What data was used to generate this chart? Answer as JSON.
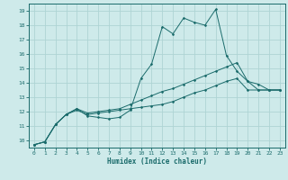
{
  "xlabel": "Humidex (Indice chaleur)",
  "xlim": [
    -0.5,
    23.5
  ],
  "ylim": [
    9.5,
    19.5
  ],
  "xticks": [
    0,
    1,
    2,
    3,
    4,
    5,
    6,
    7,
    8,
    9,
    10,
    11,
    12,
    13,
    14,
    15,
    16,
    17,
    18,
    19,
    20,
    21,
    22,
    23
  ],
  "yticks": [
    10,
    11,
    12,
    13,
    14,
    15,
    16,
    17,
    18,
    19
  ],
  "bg_color": "#ceeaea",
  "grid_color": "#aed4d4",
  "line_color": "#1a6b6b",
  "lines": [
    [
      9.7,
      9.9,
      11.1,
      11.8,
      12.2,
      11.7,
      11.6,
      11.5,
      11.6,
      12.1,
      14.3,
      15.3,
      17.9,
      17.4,
      18.5,
      18.2,
      18.0,
      19.1,
      15.9,
      14.8,
      14.1,
      13.5,
      13.5,
      13.5
    ],
    [
      9.7,
      9.9,
      11.1,
      11.8,
      12.1,
      11.8,
      11.9,
      12.0,
      12.1,
      12.2,
      12.3,
      12.4,
      12.5,
      12.7,
      13.0,
      13.3,
      13.5,
      13.8,
      14.1,
      14.3,
      13.5,
      13.5,
      13.5,
      13.5
    ],
    [
      9.7,
      9.9,
      11.1,
      11.8,
      12.2,
      11.9,
      12.0,
      12.1,
      12.2,
      12.5,
      12.8,
      13.1,
      13.4,
      13.6,
      13.9,
      14.2,
      14.5,
      14.8,
      15.1,
      15.4,
      14.1,
      13.9,
      13.5,
      13.5
    ]
  ]
}
